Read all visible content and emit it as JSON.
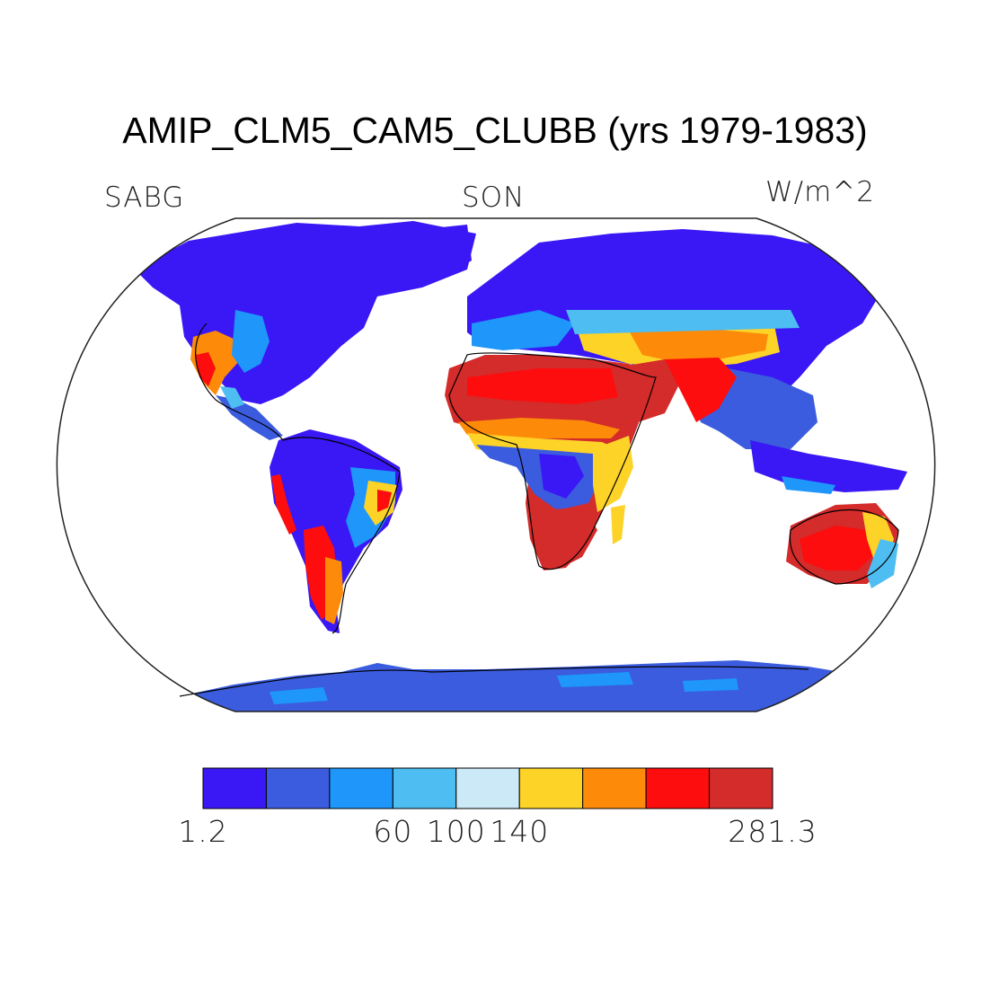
{
  "title": "AMIP_CLM5_CAM5_CLUBB (yrs 1979-1983)",
  "subtitle_left": "SABG",
  "subtitle_center": "SON",
  "subtitle_right": "W/m^2",
  "colorbar": {
    "colors": [
      "#3a18f5",
      "#3b5cde",
      "#1e96fa",
      "#4ebdf1",
      "#cce9f7",
      "#fdd327",
      "#fd8b09",
      "#fd0d0d",
      "#d42b2b"
    ],
    "tick_labels": [
      "1.2",
      "60",
      "100",
      "140",
      "281.3"
    ]
  }
}
